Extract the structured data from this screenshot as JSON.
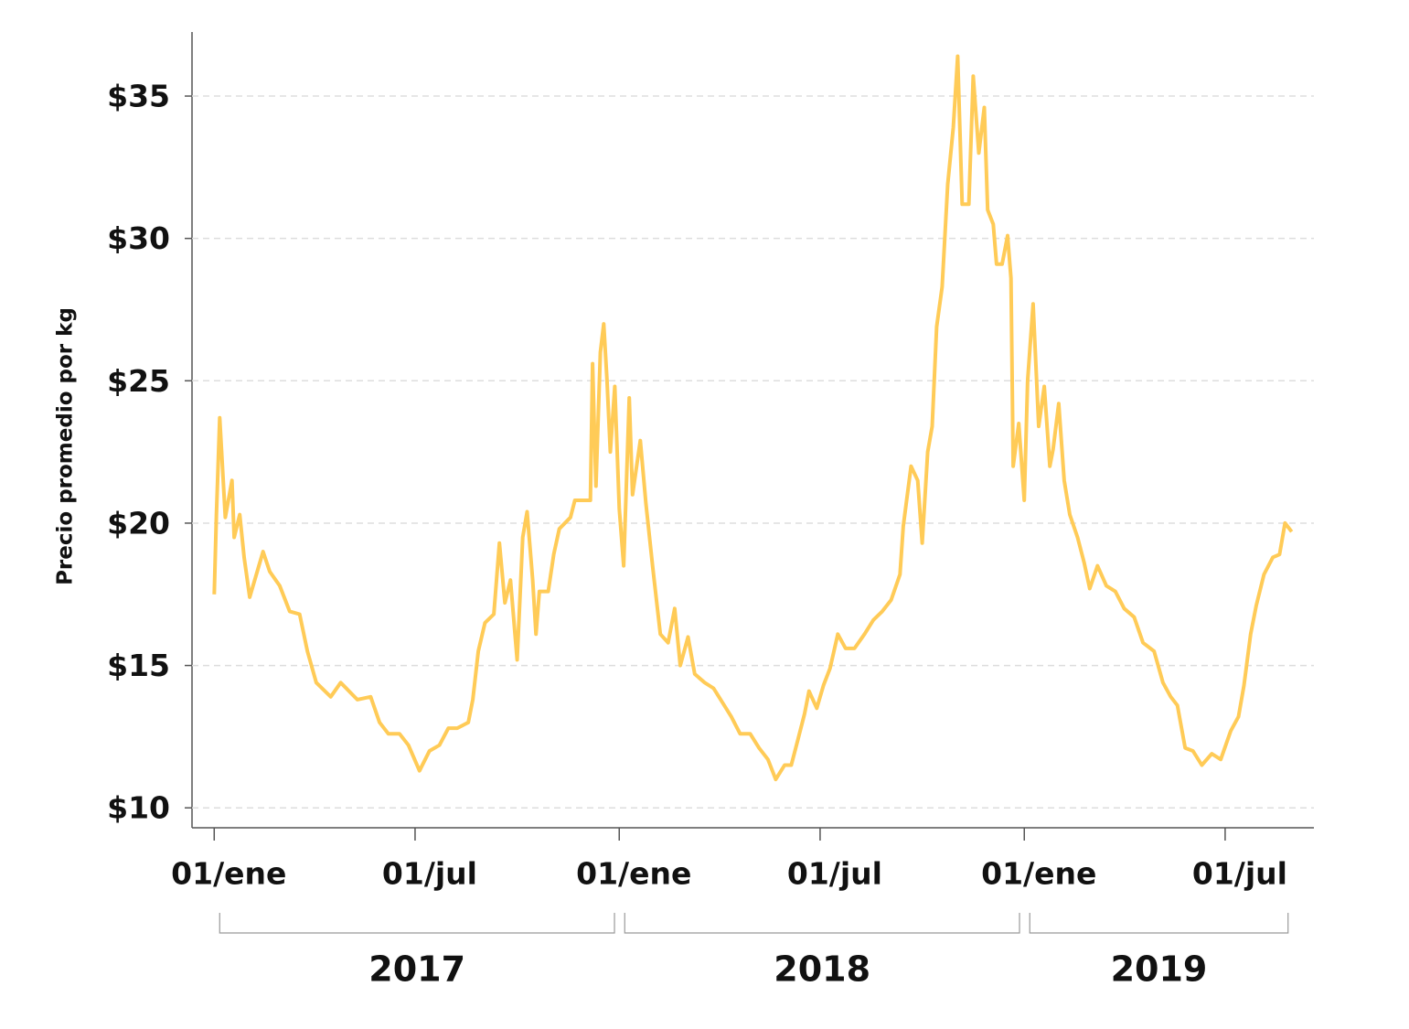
{
  "chart_data": {
    "type": "line",
    "y_label": "Precio promedio por kg",
    "xlim": [
      "2016-12-12",
      "2019-09-19"
    ],
    "xticks": [
      {
        "value": "2017-01-01",
        "label": "01/ene"
      },
      {
        "value": "2017-07-01",
        "label": "01/jul"
      },
      {
        "value": "2018-01-01",
        "label": "01/ene"
      },
      {
        "value": "2018-07-01",
        "label": "01/jul"
      },
      {
        "value": "2019-01-01",
        "label": "01/ene"
      },
      {
        "value": "2019-07-01",
        "label": "01/jul"
      }
    ],
    "year_groups": [
      {
        "label": "2017",
        "range": [
          "2017-01-01",
          "2017-12-31"
        ]
      },
      {
        "label": "2018",
        "range": [
          "2018-01-01",
          "2018-12-31"
        ]
      },
      {
        "label": "2019",
        "range": [
          "2019-01-01",
          "2019-08-30"
        ]
      }
    ],
    "ylim": [
      9.3,
      37.25
    ],
    "yticks": [
      {
        "value": 10,
        "label": "$10"
      },
      {
        "value": 15,
        "label": "$15"
      },
      {
        "value": 20,
        "label": "$20"
      },
      {
        "value": 25,
        "label": "$25"
      },
      {
        "value": 30,
        "label": "$30"
      },
      {
        "value": 35,
        "label": "$35"
      }
    ],
    "grid": true,
    "x": [
      "2017-01-01",
      "2017-01-03",
      "2017-01-06",
      "2017-01-11",
      "2017-01-17",
      "2017-01-19",
      "2017-01-24",
      "2017-01-28",
      "2017-02-02",
      "2017-02-08",
      "2017-02-14",
      "2017-02-20",
      "2017-03-01",
      "2017-03-10",
      "2017-03-19",
      "2017-03-26",
      "2017-04-03",
      "2017-04-16",
      "2017-04-25",
      "2017-05-10",
      "2017-05-22",
      "2017-05-30",
      "2017-06-07",
      "2017-06-17",
      "2017-06-25",
      "2017-07-05",
      "2017-07-14",
      "2017-07-23",
      "2017-07-31",
      "2017-08-08",
      "2017-08-18",
      "2017-08-22",
      "2017-08-27",
      "2017-09-02",
      "2017-09-10",
      "2017-09-15",
      "2017-09-20",
      "2017-09-25",
      "2017-10-01",
      "2017-10-06",
      "2017-10-10",
      "2017-10-15",
      "2017-10-18",
      "2017-10-21",
      "2017-10-29",
      "2017-11-03",
      "2017-11-08",
      "2017-11-18",
      "2017-11-22",
      "2017-12-06",
      "2017-12-08",
      "2017-12-11",
      "2017-12-15",
      "2017-12-18",
      "2017-12-21",
      "2017-12-24",
      "2017-12-28",
      "2018-01-01",
      "2018-01-05",
      "2018-01-10",
      "2018-01-13",
      "2018-01-20",
      "2018-01-25",
      "2018-01-31",
      "2018-02-07",
      "2018-02-14",
      "2018-02-20",
      "2018-02-25",
      "2018-03-04",
      "2018-03-10",
      "2018-03-19",
      "2018-03-27",
      "2018-04-04",
      "2018-04-12",
      "2018-04-20",
      "2018-04-29",
      "2018-05-07",
      "2018-05-15",
      "2018-05-22",
      "2018-05-30",
      "2018-06-05",
      "2018-06-11",
      "2018-06-17",
      "2018-06-21",
      "2018-06-28",
      "2018-07-04",
      "2018-07-10",
      "2018-07-17",
      "2018-07-24",
      "2018-08-01",
      "2018-08-10",
      "2018-08-18",
      "2018-08-26",
      "2018-09-03",
      "2018-09-11",
      "2018-09-14",
      "2018-09-21",
      "2018-09-27",
      "2018-10-01",
      "2018-10-06",
      "2018-10-10",
      "2018-10-14",
      "2018-10-19",
      "2018-10-24",
      "2018-10-29",
      "2018-11-02",
      "2018-11-06",
      "2018-11-12",
      "2018-11-16",
      "2018-11-21",
      "2018-11-26",
      "2018-11-29",
      "2018-12-04",
      "2018-12-07",
      "2018-12-12",
      "2018-12-17",
      "2018-12-20",
      "2018-12-22",
      "2018-12-27",
      "2019-01-01",
      "2019-01-04",
      "2019-01-09",
      "2019-01-14",
      "2019-01-19",
      "2019-01-24",
      "2019-01-27",
      "2019-02-01",
      "2019-02-06",
      "2019-02-11",
      "2019-02-18",
      "2019-02-24",
      "2019-03-01",
      "2019-03-08",
      "2019-03-16",
      "2019-03-24",
      "2019-04-01",
      "2019-04-10",
      "2019-04-18",
      "2019-04-28",
      "2019-05-06",
      "2019-05-13",
      "2019-05-19",
      "2019-05-26",
      "2019-06-02",
      "2019-06-10",
      "2019-06-19",
      "2019-06-27",
      "2019-07-06",
      "2019-07-13",
      "2019-07-18",
      "2019-07-24",
      "2019-07-29",
      "2019-08-05",
      "2019-08-13",
      "2019-08-19",
      "2019-08-24",
      "2019-08-30"
    ],
    "series": [
      {
        "color": "#ffcb57",
        "values": [
          17.5,
          20.3,
          23.7,
          20.2,
          21.5,
          19.5,
          20.3,
          18.8,
          17.4,
          18.2,
          19.0,
          18.3,
          17.8,
          16.9,
          16.8,
          15.5,
          14.4,
          13.9,
          14.4,
          13.8,
          13.9,
          13.0,
          12.6,
          12.6,
          12.2,
          11.3,
          12.0,
          12.2,
          12.8,
          12.8,
          13.0,
          13.8,
          15.5,
          16.5,
          16.8,
          19.3,
          17.2,
          18.0,
          15.2,
          19.5,
          20.4,
          18.0,
          16.1,
          17.6,
          17.6,
          18.9,
          19.8,
          20.2,
          20.8,
          20.8,
          25.6,
          21.3,
          26.0,
          27.0,
          25.0,
          22.5,
          24.8,
          20.5,
          18.5,
          24.4,
          21.0,
          22.9,
          20.7,
          18.5,
          16.1,
          15.8,
          17.0,
          15.0,
          16.0,
          14.7,
          14.4,
          14.2,
          13.7,
          13.2,
          12.6,
          12.6,
          12.1,
          11.7,
          11.0,
          11.5,
          11.5,
          12.4,
          13.3,
          14.1,
          13.5,
          14.3,
          14.9,
          16.1,
          15.6,
          15.6,
          16.1,
          16.6,
          16.9,
          17.3,
          18.2,
          19.9,
          22.0,
          21.5,
          19.3,
          22.5,
          23.4,
          26.9,
          28.3,
          31.9,
          33.9,
          36.4,
          31.2,
          31.2,
          35.7,
          33.0,
          34.6,
          31.0,
          30.5,
          29.1,
          29.1,
          30.1,
          28.6,
          22.0,
          23.5,
          20.8,
          25.0,
          27.7,
          23.4,
          24.8,
          22.0,
          22.6,
          24.2,
          21.5,
          20.3,
          19.5,
          18.6,
          17.7,
          18.5,
          17.8,
          17.6,
          17.0,
          16.7,
          15.8,
          15.5,
          14.4,
          13.9,
          13.6,
          12.1,
          12.0,
          11.5,
          11.9,
          11.7,
          12.7,
          13.2,
          14.3,
          16.1,
          17.1,
          18.2,
          18.8,
          18.9,
          20.0,
          19.7
        ]
      }
    ]
  }
}
